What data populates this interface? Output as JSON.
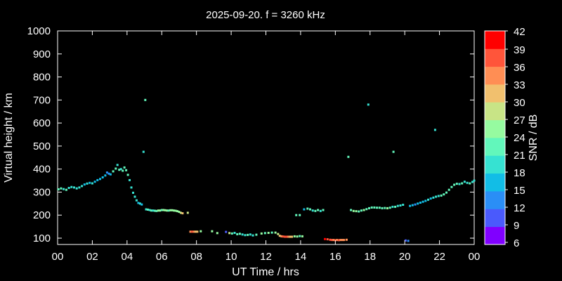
{
  "chart_data": {
    "type": "scatter",
    "title": "2025-09-20. f = 3260 kHz",
    "xlabel": "UT Time / hrs",
    "ylabel": "Virtual height / km",
    "xlim": [
      0,
      24
    ],
    "ylim": [
      80,
      1000
    ],
    "xticks": [
      "00",
      "02",
      "04",
      "06",
      "08",
      "10",
      "12",
      "14",
      "16",
      "18",
      "20",
      "22",
      "00"
    ],
    "yticks": [
      100,
      200,
      300,
      400,
      500,
      600,
      700,
      800,
      900,
      1000
    ],
    "grid": false,
    "colorbar": {
      "label": "SNR / dB",
      "min": 6,
      "max": 42,
      "ticks": [
        6,
        9,
        12,
        15,
        18,
        21,
        24,
        27,
        30,
        33,
        36,
        39,
        42
      ],
      "colors": [
        "#8000ff",
        "#4a5afc",
        "#2a8ef6",
        "#12bde6",
        "#36e2d2",
        "#62f7bb",
        "#96fba0",
        "#c8e486",
        "#f1c06e",
        "#ff8e54",
        "#ff553a",
        "#ff0000"
      ]
    },
    "points": [
      [
        0.05,
        312,
        21
      ],
      [
        0.2,
        316,
        21
      ],
      [
        0.35,
        313,
        20
      ],
      [
        0.5,
        310,
        21
      ],
      [
        0.65,
        318,
        19
      ],
      [
        0.8,
        322,
        20
      ],
      [
        0.95,
        320,
        19
      ],
      [
        1.1,
        316,
        20
      ],
      [
        1.25,
        320,
        18
      ],
      [
        1.4,
        326,
        19
      ],
      [
        1.55,
        333,
        17
      ],
      [
        1.7,
        337,
        18
      ],
      [
        1.85,
        340,
        17
      ],
      [
        2.0,
        338,
        18
      ],
      [
        2.15,
        345,
        16
      ],
      [
        2.3,
        352,
        17
      ],
      [
        2.45,
        357,
        15
      ],
      [
        2.6,
        364,
        16
      ],
      [
        2.75,
        372,
        15
      ],
      [
        2.85,
        385,
        13
      ],
      [
        2.95,
        380,
        14
      ],
      [
        3.05,
        377,
        15
      ],
      [
        3.2,
        390,
        21
      ],
      [
        3.35,
        402,
        23
      ],
      [
        3.45,
        418,
        20
      ],
      [
        3.55,
        397,
        22
      ],
      [
        3.65,
        400,
        20
      ],
      [
        3.75,
        393,
        21
      ],
      [
        3.85,
        407,
        22
      ],
      [
        3.95,
        395,
        23
      ],
      [
        4.05,
        375,
        21
      ],
      [
        4.15,
        352,
        20
      ],
      [
        4.25,
        320,
        20
      ],
      [
        4.35,
        297,
        19
      ],
      [
        4.45,
        280,
        18
      ],
      [
        4.55,
        264,
        18
      ],
      [
        4.65,
        253,
        17
      ],
      [
        4.75,
        250,
        18
      ],
      [
        4.85,
        246,
        16
      ],
      [
        4.95,
        475,
        20
      ],
      [
        5.05,
        700,
        22
      ],
      [
        5.1,
        225,
        18
      ],
      [
        5.2,
        224,
        21
      ],
      [
        5.3,
        222,
        19
      ],
      [
        5.4,
        220,
        22
      ],
      [
        5.5,
        220,
        20
      ],
      [
        5.6,
        219,
        21
      ],
      [
        5.7,
        218,
        22
      ],
      [
        5.8,
        220,
        25
      ],
      [
        5.9,
        220,
        24
      ],
      [
        6.0,
        222,
        23
      ],
      [
        6.1,
        222,
        24
      ],
      [
        6.2,
        221,
        25
      ],
      [
        6.3,
        220,
        24
      ],
      [
        6.4,
        220,
        23
      ],
      [
        6.5,
        221,
        25
      ],
      [
        6.6,
        221,
        26
      ],
      [
        6.7,
        220,
        25
      ],
      [
        6.8,
        219,
        24
      ],
      [
        6.9,
        217,
        25
      ],
      [
        7.0,
        214,
        26
      ],
      [
        7.1,
        210,
        28
      ],
      [
        7.2,
        208,
        30
      ],
      [
        7.5,
        210,
        27
      ],
      [
        7.65,
        128,
        34
      ],
      [
        7.75,
        128,
        36
      ],
      [
        7.85,
        128,
        33
      ],
      [
        7.95,
        128,
        31
      ],
      [
        8.05,
        128,
        30
      ],
      [
        8.25,
        130,
        26
      ],
      [
        8.9,
        130,
        24
      ],
      [
        9.2,
        122,
        25
      ],
      [
        9.7,
        127,
        9
      ],
      [
        9.9,
        122,
        27
      ],
      [
        10.05,
        120,
        22
      ],
      [
        10.2,
        123,
        20
      ],
      [
        10.35,
        117,
        21
      ],
      [
        10.5,
        119,
        23
      ],
      [
        10.65,
        116,
        18
      ],
      [
        10.8,
        113,
        20
      ],
      [
        10.95,
        114,
        21
      ],
      [
        11.1,
        116,
        19
      ],
      [
        11.25,
        112,
        18
      ],
      [
        11.45,
        115,
        22
      ],
      [
        11.75,
        120,
        24
      ],
      [
        11.95,
        122,
        23
      ],
      [
        12.15,
        123,
        24
      ],
      [
        12.35,
        124,
        23
      ],
      [
        12.55,
        124,
        25
      ],
      [
        12.7,
        118,
        27
      ],
      [
        12.8,
        110,
        31
      ],
      [
        12.9,
        108,
        33
      ],
      [
        13.0,
        107,
        36
      ],
      [
        13.1,
        106,
        38
      ],
      [
        13.2,
        106,
        37
      ],
      [
        13.3,
        106,
        34
      ],
      [
        13.4,
        106,
        32
      ],
      [
        13.5,
        106,
        30
      ],
      [
        13.65,
        108,
        26
      ],
      [
        13.8,
        107,
        24
      ],
      [
        13.95,
        109,
        23
      ],
      [
        14.1,
        108,
        25
      ],
      [
        13.75,
        200,
        21
      ],
      [
        13.95,
        200,
        22
      ],
      [
        14.2,
        225,
        16
      ],
      [
        14.4,
        228,
        21
      ],
      [
        14.55,
        225,
        22
      ],
      [
        14.7,
        220,
        20
      ],
      [
        14.85,
        218,
        22
      ],
      [
        15.0,
        222,
        21
      ],
      [
        15.15,
        218,
        20
      ],
      [
        15.3,
        222,
        21
      ],
      [
        15.4,
        96,
        39
      ],
      [
        15.55,
        95,
        37
      ],
      [
        15.7,
        93,
        36
      ],
      [
        15.8,
        92,
        38
      ],
      [
        15.9,
        92,
        35
      ],
      [
        16.0,
        91,
        37
      ],
      [
        16.1,
        92,
        34
      ],
      [
        16.2,
        91,
        36
      ],
      [
        16.3,
        92,
        35
      ],
      [
        16.4,
        92,
        34
      ],
      [
        16.5,
        92,
        33
      ],
      [
        16.65,
        93,
        35
      ],
      [
        16.75,
        453,
        21
      ],
      [
        16.9,
        222,
        22
      ],
      [
        17.05,
        218,
        24
      ],
      [
        17.2,
        217,
        25
      ],
      [
        17.35,
        216,
        23
      ],
      [
        17.5,
        220,
        22
      ],
      [
        17.65,
        222,
        24
      ],
      [
        17.8,
        226,
        23
      ],
      [
        17.95,
        230,
        22
      ],
      [
        18.1,
        233,
        21
      ],
      [
        18.25,
        233,
        23
      ],
      [
        18.4,
        232,
        22
      ],
      [
        18.55,
        232,
        21
      ],
      [
        18.7,
        230,
        23
      ],
      [
        18.85,
        231,
        22
      ],
      [
        19.0,
        230,
        24
      ],
      [
        19.15,
        232,
        21
      ],
      [
        19.3,
        236,
        20
      ],
      [
        19.45,
        236,
        22
      ],
      [
        19.6,
        240,
        19
      ],
      [
        19.75,
        242,
        20
      ],
      [
        19.9,
        245,
        18
      ],
      [
        17.9,
        680,
        20
      ],
      [
        19.35,
        475,
        22
      ],
      [
        20.05,
        90,
        9
      ],
      [
        20.2,
        88,
        12
      ],
      [
        20.3,
        240,
        15
      ],
      [
        20.45,
        243,
        16
      ],
      [
        20.6,
        246,
        14
      ],
      [
        20.75,
        250,
        16
      ],
      [
        20.9,
        254,
        15
      ],
      [
        21.05,
        258,
        17
      ],
      [
        21.2,
        262,
        16
      ],
      [
        21.35,
        267,
        18
      ],
      [
        21.5,
        272,
        17
      ],
      [
        21.65,
        276,
        19
      ],
      [
        21.8,
        280,
        18
      ],
      [
        21.95,
        283,
        20
      ],
      [
        21.75,
        570,
        20
      ],
      [
        22.1,
        285,
        21
      ],
      [
        22.25,
        290,
        22
      ],
      [
        22.4,
        298,
        21
      ],
      [
        22.55,
        310,
        23
      ],
      [
        22.7,
        322,
        22
      ],
      [
        22.85,
        332,
        21
      ],
      [
        23.0,
        336,
        22
      ],
      [
        23.15,
        335,
        20
      ],
      [
        23.3,
        338,
        21
      ],
      [
        23.45,
        345,
        19
      ],
      [
        23.6,
        340,
        20
      ],
      [
        23.75,
        338,
        21
      ],
      [
        23.9,
        344,
        20
      ],
      [
        24.0,
        350,
        19
      ]
    ]
  }
}
